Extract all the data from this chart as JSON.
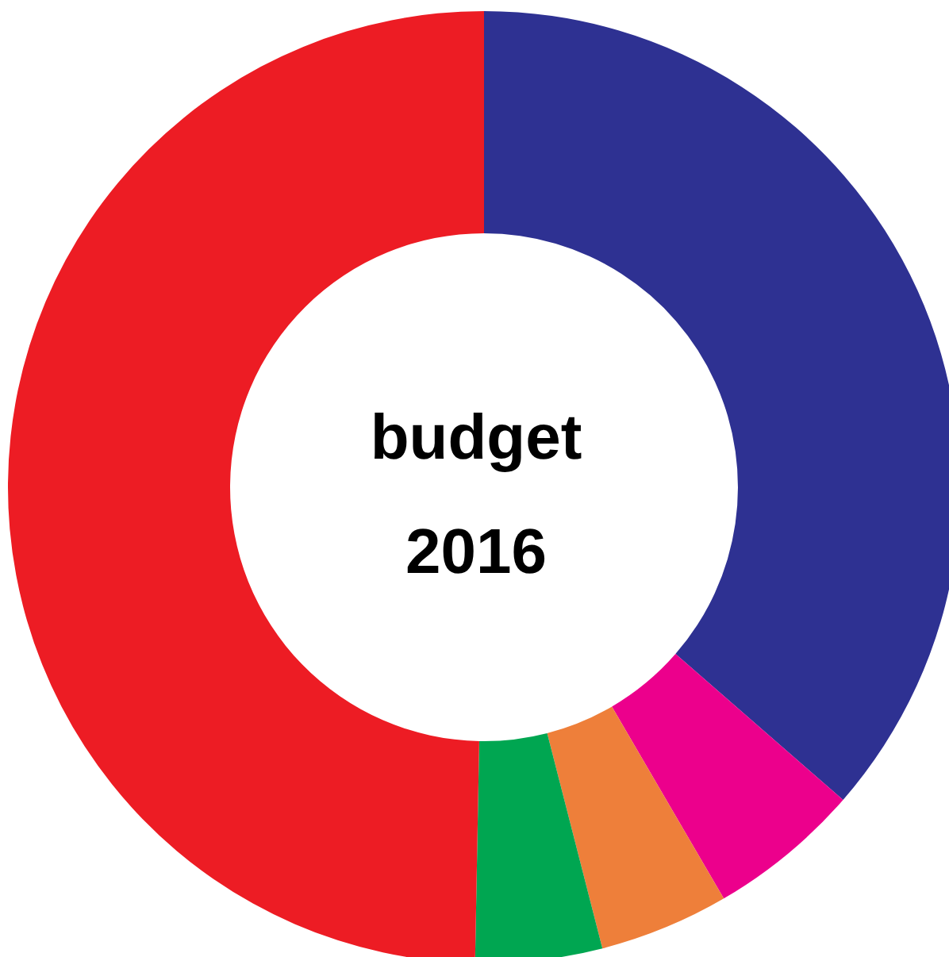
{
  "chart_data": {
    "type": "donut",
    "title": "budget",
    "subtitle": "2016",
    "categories": [
      null,
      null,
      null,
      null,
      null
    ],
    "values": [
      36.4,
      5.2,
      4.4,
      4.3,
      49.7
    ],
    "colors": [
      "#2e3192",
      "#ec008c",
      "#ee7f3a",
      "#00a651",
      "#ed1c24"
    ]
  }
}
